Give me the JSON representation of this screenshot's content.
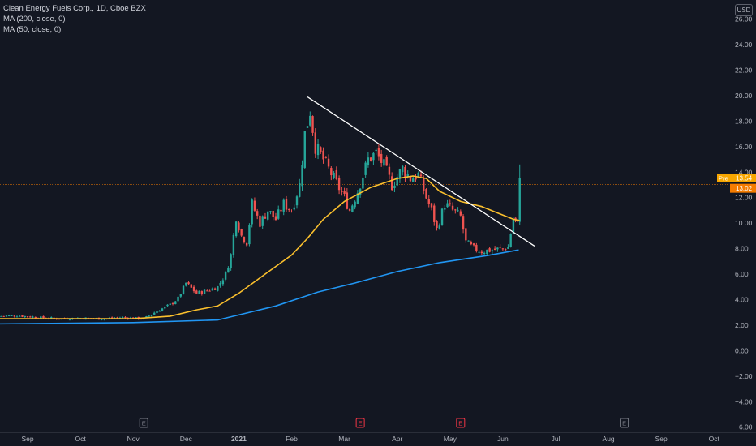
{
  "header": {
    "title": "Clean Energy Fuels Corp., 1D, Cboe BZX",
    "indicators": [
      "MA (200, close, 0)",
      "MA (50, close, 0)"
    ],
    "currency": "USD"
  },
  "chart_data": {
    "type": "candlestick",
    "title": "Clean Energy Fuels Corp., 1D, Cboe BZX",
    "ylim": [
      -6.4,
      27.5
    ],
    "y_ticks": [
      "26.00",
      "24.00",
      "22.00",
      "20.00",
      "18.00",
      "16.00",
      "14.00",
      "12.00",
      "10.00",
      "8.00",
      "6.00",
      "4.00",
      "2.00",
      "0.00",
      "−2.00",
      "−4.00",
      "−6.00"
    ],
    "y_tick_values": [
      26,
      24,
      22,
      20,
      18,
      16,
      14,
      12,
      10,
      8,
      6,
      4,
      2,
      0,
      -2,
      -4,
      -6
    ],
    "x_labels": [
      "Sep",
      "Oct",
      "Nov",
      "Dec",
      "2021",
      "Feb",
      "Mar",
      "Apr",
      "May",
      "Jun",
      "Jul",
      "Aug",
      "Sep",
      "Oct"
    ],
    "x_label_months": [
      0,
      1,
      2,
      3,
      4,
      5,
      6,
      7,
      8,
      9,
      10,
      11,
      12,
      13
    ],
    "earnings_markers": [
      {
        "month": 2.2,
        "label": "E",
        "color": "#787b86"
      },
      {
        "month": 6.3,
        "label": "E",
        "color": "#f23645"
      },
      {
        "month": 8.2,
        "label": "E",
        "color": "#f23645"
      },
      {
        "month": 11.3,
        "label": "E",
        "color": "#787b86"
      }
    ],
    "price_levels": [
      {
        "label": "Pre",
        "value": "13.54",
        "price": 13.54,
        "color": "#f7a600"
      },
      {
        "label": "",
        "value": "13.02",
        "price": 13.02,
        "color": "#f57c00"
      }
    ],
    "close_series": [
      {
        "m": -0.55,
        "c": 2.7
      },
      {
        "m": -0.2,
        "c": 2.75
      },
      {
        "m": 0.2,
        "c": 2.6
      },
      {
        "m": 0.6,
        "c": 2.5
      },
      {
        "m": 1.0,
        "c": 2.55
      },
      {
        "m": 1.4,
        "c": 2.5
      },
      {
        "m": 1.8,
        "c": 2.6
      },
      {
        "m": 2.2,
        "c": 2.5
      },
      {
        "m": 2.45,
        "c": 3.1
      },
      {
        "m": 2.7,
        "c": 3.6
      },
      {
        "m": 2.85,
        "c": 4.1
      },
      {
        "m": 3.0,
        "c": 5.3
      },
      {
        "m": 3.2,
        "c": 4.5
      },
      {
        "m": 3.4,
        "c": 4.7
      },
      {
        "m": 3.6,
        "c": 5.0
      },
      {
        "m": 3.75,
        "c": 6.0
      },
      {
        "m": 3.85,
        "c": 7.5
      },
      {
        "m": 3.95,
        "c": 10.5
      },
      {
        "m": 4.05,
        "c": 9.0
      },
      {
        "m": 4.15,
        "c": 8.5
      },
      {
        "m": 4.25,
        "c": 11.5
      },
      {
        "m": 4.4,
        "c": 10.0
      },
      {
        "m": 4.55,
        "c": 11.0
      },
      {
        "m": 4.7,
        "c": 10.3
      },
      {
        "m": 4.85,
        "c": 11.5
      },
      {
        "m": 5.0,
        "c": 11.0
      },
      {
        "m": 5.15,
        "c": 13.0
      },
      {
        "m": 5.25,
        "c": 17.0
      },
      {
        "m": 5.35,
        "c": 18.8
      },
      {
        "m": 5.45,
        "c": 16.0
      },
      {
        "m": 5.6,
        "c": 15.0
      },
      {
        "m": 5.8,
        "c": 13.5
      },
      {
        "m": 6.0,
        "c": 12.0
      },
      {
        "m": 6.1,
        "c": 11.0
      },
      {
        "m": 6.25,
        "c": 12.5
      },
      {
        "m": 6.45,
        "c": 15.0
      },
      {
        "m": 6.6,
        "c": 15.5
      },
      {
        "m": 6.75,
        "c": 14.5
      },
      {
        "m": 6.9,
        "c": 13.0
      },
      {
        "m": 7.1,
        "c": 14.3
      },
      {
        "m": 7.25,
        "c": 13.5
      },
      {
        "m": 7.4,
        "c": 13.8
      },
      {
        "m": 7.55,
        "c": 12.0
      },
      {
        "m": 7.65,
        "c": 11.0
      },
      {
        "m": 7.75,
        "c": 9.5
      },
      {
        "m": 7.9,
        "c": 11.5
      },
      {
        "m": 8.05,
        "c": 11.0
      },
      {
        "m": 8.2,
        "c": 10.5
      },
      {
        "m": 8.3,
        "c": 8.5
      },
      {
        "m": 8.45,
        "c": 8.0
      },
      {
        "m": 8.6,
        "c": 7.8
      },
      {
        "m": 8.8,
        "c": 7.9
      },
      {
        "m": 9.0,
        "c": 8.0
      },
      {
        "m": 9.1,
        "c": 8.1
      },
      {
        "m": 9.2,
        "c": 10.3
      },
      {
        "m": 9.28,
        "c": 10.0
      },
      {
        "m": 9.32,
        "c": 13.54
      }
    ],
    "series": [
      {
        "name": "MA (200, close, 0)",
        "color": "#2196f3",
        "points": [
          [
            -0.55,
            2.1
          ],
          [
            2.0,
            2.2
          ],
          [
            3.6,
            2.4
          ],
          [
            4.7,
            3.5
          ],
          [
            5.5,
            4.6
          ],
          [
            6.2,
            5.3
          ],
          [
            7.0,
            6.2
          ],
          [
            7.8,
            6.9
          ],
          [
            8.7,
            7.45
          ],
          [
            9.3,
            7.9
          ]
        ]
      },
      {
        "name": "MA (50, close, 0)",
        "color": "#fbc02d",
        "points": [
          [
            -0.55,
            2.5
          ],
          [
            2.0,
            2.5
          ],
          [
            2.7,
            2.7
          ],
          [
            3.2,
            3.2
          ],
          [
            3.6,
            3.5
          ],
          [
            4.0,
            4.5
          ],
          [
            4.5,
            6.0
          ],
          [
            5.0,
            7.5
          ],
          [
            5.3,
            8.8
          ],
          [
            5.6,
            10.3
          ],
          [
            6.0,
            11.7
          ],
          [
            6.5,
            12.8
          ],
          [
            7.0,
            13.5
          ],
          [
            7.3,
            13.7
          ],
          [
            7.55,
            13.5
          ],
          [
            7.8,
            12.5
          ],
          [
            8.2,
            11.7
          ],
          [
            8.6,
            11.3
          ],
          [
            8.9,
            10.8
          ],
          [
            9.2,
            10.3
          ],
          [
            9.32,
            10.2
          ]
        ]
      }
    ],
    "trendline": {
      "from": [
        5.3,
        19.9
      ],
      "to": [
        9.6,
        8.2
      ]
    }
  }
}
